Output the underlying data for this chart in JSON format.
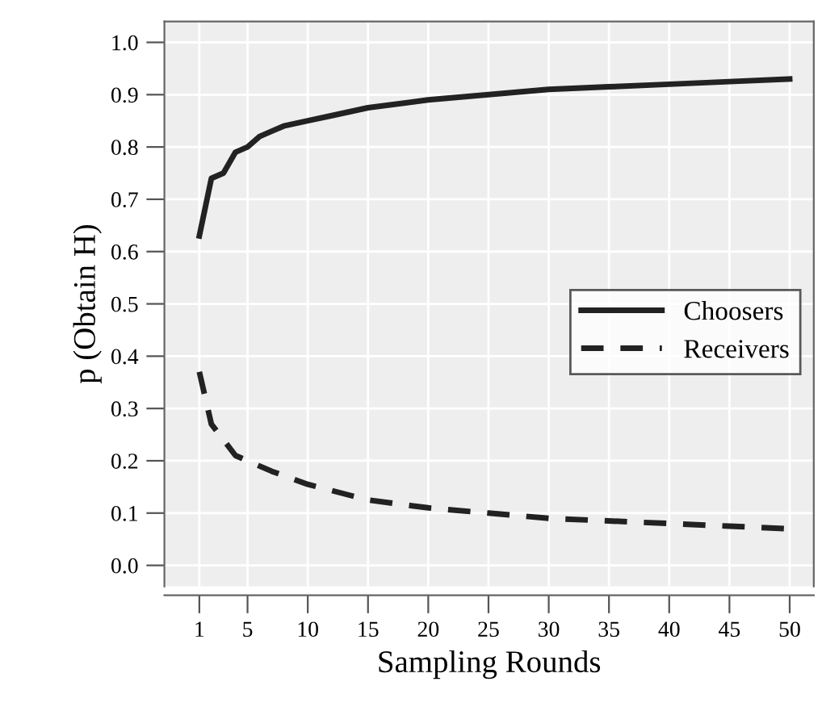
{
  "chart_data": {
    "type": "line",
    "xlabel": "Sampling Rounds",
    "ylabel": "p (Obtain H)",
    "xlim": [
      -1.9,
      52
    ],
    "ylim": [
      -0.04,
      1.04
    ],
    "xticks": [
      1,
      5,
      10,
      15,
      20,
      25,
      30,
      35,
      40,
      45,
      50
    ],
    "yticks": [
      {
        "value": 0,
        "label": "0.0"
      },
      0.1,
      0.2,
      0.3,
      0.4,
      0.5,
      0.6,
      0.7,
      0.8,
      0.9,
      {
        "value": 1,
        "label": "1.0"
      }
    ],
    "grid": true,
    "legend": "right",
    "series": [
      {
        "name": "Choosers",
        "color": "#222222",
        "line_style": "solid",
        "x": [
          1,
          2,
          3,
          4,
          5,
          6,
          7,
          8,
          10,
          12,
          15,
          20,
          25,
          30,
          35,
          40,
          45,
          50
        ],
        "values": [
          0.63,
          0.74,
          0.75,
          0.79,
          0.8,
          0.82,
          0.83,
          0.84,
          0.85,
          0.86,
          0.875,
          0.89,
          0.9,
          0.91,
          0.915,
          0.92,
          0.925,
          0.93
        ]
      },
      {
        "name": "Receivers",
        "color": "#222222",
        "line_style": "dashed",
        "x": [
          1,
          2,
          3,
          4,
          5,
          7,
          10,
          15,
          20,
          25,
          30,
          35,
          40,
          45,
          50
        ],
        "values": [
          0.37,
          0.27,
          0.24,
          0.21,
          0.2,
          0.18,
          0.155,
          0.125,
          0.11,
          0.1,
          0.09,
          0.085,
          0.08,
          0.075,
          0.07
        ]
      }
    ]
  }
}
